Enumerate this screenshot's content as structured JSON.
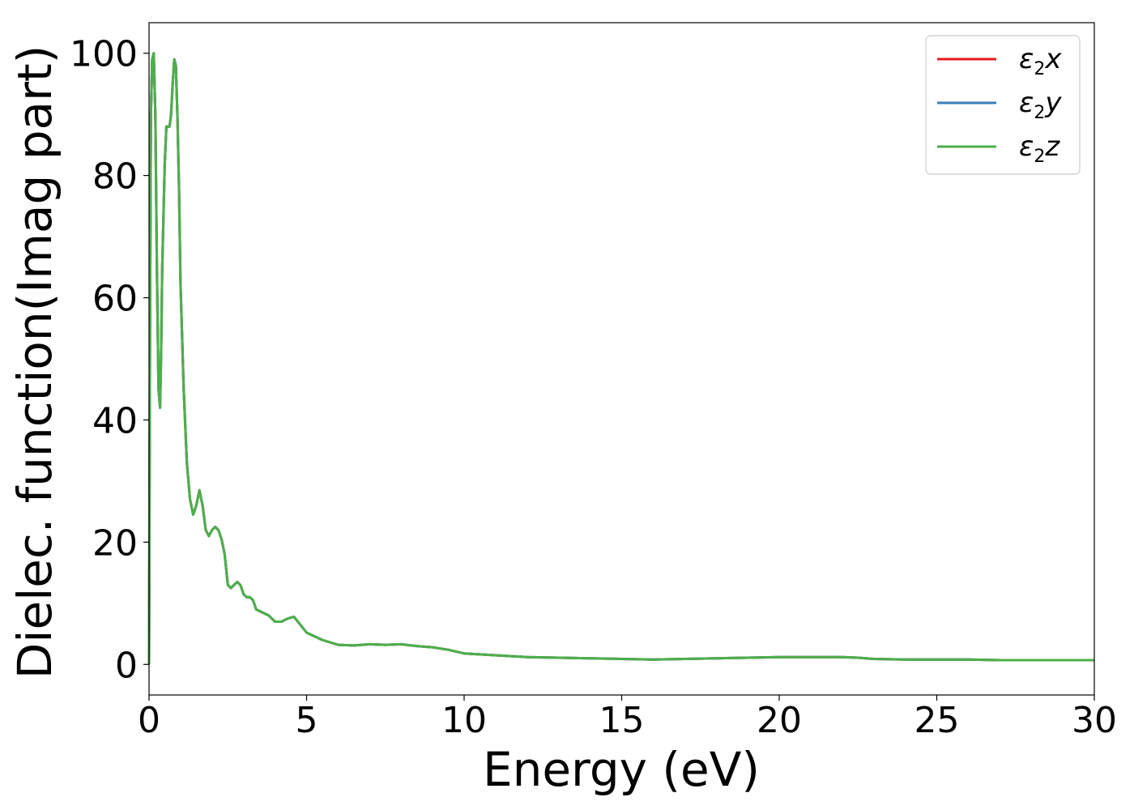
{
  "chart_data": {
    "type": "line",
    "title": "",
    "xlabel": "Energy (eV)",
    "ylabel": "Dielec. function(Imag part)",
    "xlim": [
      0,
      30
    ],
    "ylim": [
      -5,
      105
    ],
    "xticks": [
      "0",
      "5",
      "10",
      "15",
      "20",
      "25",
      "30"
    ],
    "yticks": [
      "0",
      "20",
      "40",
      "60",
      "80",
      "100"
    ],
    "grid": false,
    "legend_position": "top-right",
    "series": [
      {
        "name": "ε2x",
        "legend_symbol": "ε",
        "legend_sub": "2",
        "legend_var": "x",
        "color": "#e41a1c",
        "x": [
          0,
          0.03,
          0.06,
          0.1,
          0.15,
          0.2,
          0.25,
          0.3,
          0.35,
          0.38,
          0.42,
          0.5,
          0.55,
          0.6,
          0.65,
          0.7,
          0.75,
          0.8,
          0.85,
          0.9,
          0.95,
          1.0,
          1.1,
          1.2,
          1.3,
          1.4,
          1.5,
          1.6,
          1.7,
          1.8,
          1.9,
          2.0,
          2.1,
          2.2,
          2.3,
          2.4,
          2.5,
          2.6,
          2.7,
          2.8,
          2.9,
          3.0,
          3.1,
          3.2,
          3.3,
          3.4,
          3.6,
          3.8,
          4.0,
          4.2,
          4.4,
          4.6,
          4.8,
          5.0,
          5.5,
          6.0,
          6.5,
          7.0,
          7.5,
          8.0,
          8.5,
          9.0,
          9.5,
          10.0,
          11.0,
          12.0,
          13.0,
          14.0,
          15.0,
          16.0,
          17.0,
          18.0,
          19.0,
          20.0,
          21.0,
          22.0,
          22.5,
          23.0,
          24.0,
          25.0,
          26.0,
          27.0,
          28.0,
          29.0,
          30.0
        ],
        "values": [
          0,
          55,
          90,
          99,
          100,
          90,
          65,
          45,
          42,
          50,
          65,
          82,
          88,
          88,
          88,
          90,
          95,
          99,
          98,
          90,
          78,
          62,
          45,
          33,
          27,
          24.5,
          26,
          28.5,
          26,
          22,
          21,
          22,
          22.5,
          22,
          20.5,
          18,
          13,
          12.5,
          13,
          13.5,
          13,
          11.5,
          11,
          11,
          10.5,
          9,
          8.5,
          8,
          7,
          7,
          7.5,
          7.8,
          6.5,
          5.2,
          4,
          3.2,
          3.1,
          3.3,
          3.2,
          3.3,
          3.0,
          2.8,
          2.4,
          1.8,
          1.5,
          1.2,
          1.1,
          1.0,
          0.9,
          0.8,
          0.9,
          1.0,
          1.1,
          1.2,
          1.2,
          1.2,
          1.1,
          0.9,
          0.8,
          0.8,
          0.8,
          0.7,
          0.7,
          0.7,
          0.7
        ]
      },
      {
        "name": "ε2y",
        "legend_symbol": "ε",
        "legend_sub": "2",
        "legend_var": "y",
        "color": "#377eb8",
        "x": [
          0,
          0.03,
          0.06,
          0.1,
          0.15,
          0.2,
          0.25,
          0.3,
          0.35,
          0.38,
          0.42,
          0.5,
          0.55,
          0.6,
          0.65,
          0.7,
          0.75,
          0.8,
          0.85,
          0.9,
          0.95,
          1.0,
          1.1,
          1.2,
          1.3,
          1.4,
          1.5,
          1.6,
          1.7,
          1.8,
          1.9,
          2.0,
          2.1,
          2.2,
          2.3,
          2.4,
          2.5,
          2.6,
          2.7,
          2.8,
          2.9,
          3.0,
          3.1,
          3.2,
          3.3,
          3.4,
          3.6,
          3.8,
          4.0,
          4.2,
          4.4,
          4.6,
          4.8,
          5.0,
          5.5,
          6.0,
          6.5,
          7.0,
          7.5,
          8.0,
          8.5,
          9.0,
          9.5,
          10.0,
          11.0,
          12.0,
          13.0,
          14.0,
          15.0,
          16.0,
          17.0,
          18.0,
          19.0,
          20.0,
          21.0,
          22.0,
          22.5,
          23.0,
          24.0,
          25.0,
          26.0,
          27.0,
          28.0,
          29.0,
          30.0
        ],
        "values": [
          0,
          55,
          90,
          99,
          100,
          90,
          65,
          45,
          42,
          50,
          65,
          82,
          88,
          88,
          88,
          90,
          95,
          99,
          98,
          90,
          78,
          62,
          45,
          33,
          27,
          24.5,
          26,
          28.5,
          26,
          22,
          21,
          22,
          22.5,
          22,
          20.5,
          18,
          13,
          12.5,
          13,
          13.5,
          13,
          11.5,
          11,
          11,
          10.5,
          9,
          8.5,
          8,
          7,
          7,
          7.5,
          7.8,
          6.5,
          5.2,
          4,
          3.2,
          3.1,
          3.3,
          3.2,
          3.3,
          3.0,
          2.8,
          2.4,
          1.8,
          1.5,
          1.2,
          1.1,
          1.0,
          0.9,
          0.8,
          0.9,
          1.0,
          1.1,
          1.2,
          1.2,
          1.2,
          1.1,
          0.9,
          0.8,
          0.8,
          0.8,
          0.7,
          0.7,
          0.7,
          0.7
        ]
      },
      {
        "name": "ε2z",
        "legend_symbol": "ε",
        "legend_sub": "2",
        "legend_var": "z",
        "color": "#4daf4a",
        "x": [
          0,
          0.03,
          0.06,
          0.1,
          0.15,
          0.2,
          0.25,
          0.3,
          0.35,
          0.38,
          0.42,
          0.5,
          0.55,
          0.6,
          0.65,
          0.7,
          0.75,
          0.8,
          0.85,
          0.9,
          0.95,
          1.0,
          1.1,
          1.2,
          1.3,
          1.4,
          1.5,
          1.6,
          1.7,
          1.8,
          1.9,
          2.0,
          2.1,
          2.2,
          2.3,
          2.4,
          2.5,
          2.6,
          2.7,
          2.8,
          2.9,
          3.0,
          3.1,
          3.2,
          3.3,
          3.4,
          3.6,
          3.8,
          4.0,
          4.2,
          4.4,
          4.6,
          4.8,
          5.0,
          5.5,
          6.0,
          6.5,
          7.0,
          7.5,
          8.0,
          8.5,
          9.0,
          9.5,
          10.0,
          11.0,
          12.0,
          13.0,
          14.0,
          15.0,
          16.0,
          17.0,
          18.0,
          19.0,
          20.0,
          21.0,
          22.0,
          22.5,
          23.0,
          24.0,
          25.0,
          26.0,
          27.0,
          28.0,
          29.0,
          30.0
        ],
        "values": [
          0,
          55,
          90,
          99,
          100,
          90,
          65,
          45,
          42,
          50,
          65,
          82,
          88,
          88,
          88,
          90,
          95,
          99,
          98,
          90,
          78,
          62,
          45,
          33,
          27,
          24.5,
          26,
          28.5,
          26,
          22,
          21,
          22,
          22.5,
          22,
          20.5,
          18,
          13,
          12.5,
          13,
          13.5,
          13,
          11.5,
          11,
          11,
          10.5,
          9,
          8.5,
          8,
          7,
          7,
          7.5,
          7.8,
          6.5,
          5.2,
          4,
          3.2,
          3.1,
          3.3,
          3.2,
          3.3,
          3.0,
          2.8,
          2.4,
          1.8,
          1.5,
          1.2,
          1.1,
          1.0,
          0.9,
          0.8,
          0.9,
          1.0,
          1.1,
          1.2,
          1.2,
          1.2,
          1.1,
          0.9,
          0.8,
          0.8,
          0.8,
          0.7,
          0.7,
          0.7,
          0.7
        ]
      }
    ]
  }
}
